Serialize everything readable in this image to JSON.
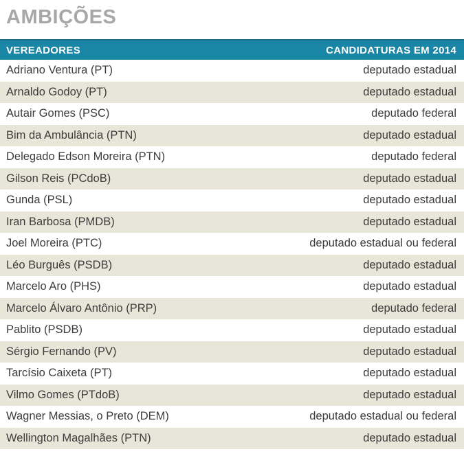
{
  "title": "AMBIÇÕES",
  "colors": {
    "title_gray": "#a7a7a7",
    "header_teal": "#1a86a6",
    "header_text": "#ffffff",
    "row_alt_beige": "#e8e6d8",
    "row_white": "#ffffff",
    "row_text": "#3c3c3c"
  },
  "table": {
    "headers": [
      "VEREADORES",
      "CANDIDATURAS EM 2014"
    ],
    "rows": [
      {
        "vereador": "Adriano Ventura (PT)",
        "candidatura": "deputado estadual"
      },
      {
        "vereador": "Arnaldo Godoy (PT)",
        "candidatura": "deputado estadual"
      },
      {
        "vereador": "Autair Gomes (PSC)",
        "candidatura": "deputado federal"
      },
      {
        "vereador": "Bim da Ambulância (PTN)",
        "candidatura": "deputado estadual"
      },
      {
        "vereador": "Delegado Edson Moreira (PTN)",
        "candidatura": "deputado federal"
      },
      {
        "vereador": "Gilson Reis (PCdoB)",
        "candidatura": "deputado estadual"
      },
      {
        "vereador": "Gunda (PSL)",
        "candidatura": "deputado estadual"
      },
      {
        "vereador": "Iran Barbosa (PMDB)",
        "candidatura": "deputado estadual"
      },
      {
        "vereador": "Joel Moreira (PTC)",
        "candidatura": "deputado estadual ou federal"
      },
      {
        "vereador": "Léo Burguês (PSDB)",
        "candidatura": "deputado estadual"
      },
      {
        "vereador": "Marcelo Aro (PHS)",
        "candidatura": "deputado estadual"
      },
      {
        "vereador": "Marcelo Álvaro Antônio (PRP)",
        "candidatura": "deputado federal"
      },
      {
        "vereador": "Pablito (PSDB)",
        "candidatura": "deputado estadual"
      },
      {
        "vereador": "Sérgio Fernando (PV)",
        "candidatura": "deputado estadual"
      },
      {
        "vereador": "Tarcísio Caixeta (PT)",
        "candidatura": "deputado estadual"
      },
      {
        "vereador": "Vilmo Gomes (PTdoB)",
        "candidatura": "deputado estadual"
      },
      {
        "vereador": "Wagner Messias, o Preto (DEM)",
        "candidatura": "deputado estadual ou federal"
      },
      {
        "vereador": "Wellington Magalhães (PTN)",
        "candidatura": "deputado estadual"
      }
    ]
  }
}
